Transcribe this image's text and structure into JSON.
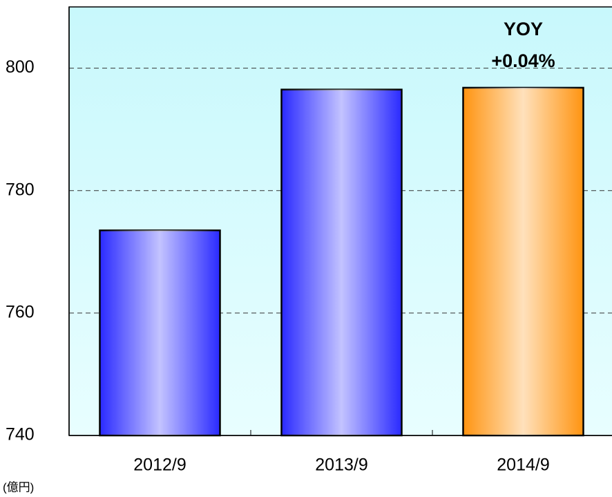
{
  "chart_data": {
    "type": "bar",
    "categories": [
      "2012/9",
      "2013/9",
      "2014/9"
    ],
    "values": [
      773.5,
      796.5,
      796.8
    ],
    "colors": [
      "#2a2aff",
      "#2a2aff",
      "#ff9410"
    ],
    "ylim": [
      740,
      810
    ],
    "yticks": [
      740,
      760,
      780,
      800
    ],
    "grid": true,
    "annotations": [
      "YOY",
      "+0.04%"
    ],
    "unit_label": "(億円)"
  }
}
